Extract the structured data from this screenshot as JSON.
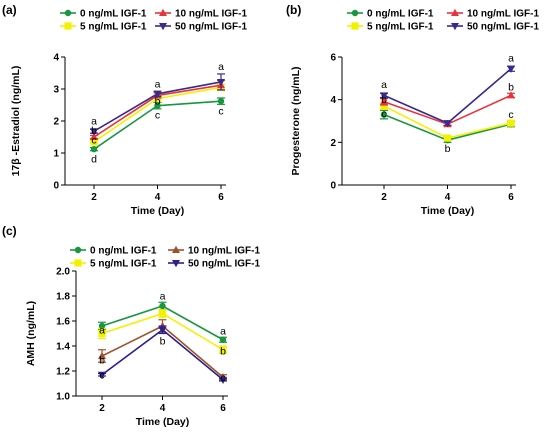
{
  "chart_data": [
    {
      "panel": "(a)",
      "type": "line",
      "ylabel": "17β -Estradiol (ng/mL)",
      "xlabel": "Time (Day)",
      "x": [
        2,
        4,
        6
      ],
      "xticks": [
        "2",
        "4",
        "6"
      ],
      "ylim": [
        0,
        4
      ],
      "yticks": [
        "0",
        "1",
        "2",
        "3",
        "4"
      ],
      "series": [
        {
          "name": "0 ng/mL IGF-1",
          "color": "#1a9641",
          "marker": "circle",
          "values": [
            1.12,
            2.48,
            2.62
          ],
          "errors": [
            0.05,
            0.1,
            0.1
          ]
        },
        {
          "name": "5 ng/mL IGF-1",
          "color": "#f2f200",
          "marker": "square",
          "values": [
            1.35,
            2.7,
            3.05
          ],
          "errors": [
            0.05,
            0.08,
            0.1
          ]
        },
        {
          "name": "10 ng/mL IGF-1",
          "color": "#e8323c",
          "marker": "triangle-up",
          "values": [
            1.5,
            2.8,
            3.12
          ],
          "errors": [
            0.05,
            0.08,
            0.15
          ]
        },
        {
          "name": "50 ng/mL IGF-1",
          "color": "#3a2a8c",
          "marker": "triangle-down",
          "values": [
            1.68,
            2.85,
            3.22
          ],
          "errors": [
            0.06,
            0.08,
            0.25
          ]
        }
      ],
      "annotations": [
        {
          "text": "a",
          "x": 2,
          "y": 2.0
        },
        {
          "text": "b",
          "x": 2,
          "y": 1.7
        },
        {
          "text": "c",
          "x": 2,
          "y": 1.4
        },
        {
          "text": "d",
          "x": 2,
          "y": 0.82
        },
        {
          "text": "a",
          "x": 4,
          "y": 3.15
        },
        {
          "text": "b",
          "x": 4,
          "y": 2.62
        },
        {
          "text": "c",
          "x": 4,
          "y": 2.18
        },
        {
          "text": "a",
          "x": 6,
          "y": 3.7
        },
        {
          "text": "c",
          "x": 6,
          "y": 2.32
        }
      ]
    },
    {
      "panel": "(b)",
      "type": "line",
      "ylabel": "Progesterone (ng/mL)",
      "xlabel": "Time (Day)",
      "x": [
        2,
        4,
        6
      ],
      "xticks": [
        "2",
        "4",
        "6"
      ],
      "ylim": [
        0,
        6
      ],
      "yticks": [
        "0",
        "2",
        "4",
        "6"
      ],
      "series": [
        {
          "name": "0 ng/mL IGF-1",
          "color": "#1a9641",
          "marker": "circle",
          "values": [
            3.3,
            2.1,
            2.85
          ],
          "errors": [
            0.2,
            0.1,
            0.12
          ]
        },
        {
          "name": "5 ng/mL IGF-1",
          "color": "#f2f200",
          "marker": "square",
          "values": [
            3.7,
            2.2,
            2.9
          ],
          "errors": [
            0.15,
            0.1,
            0.1
          ]
        },
        {
          "name": "10 ng/mL IGF-1",
          "color": "#e8323c",
          "marker": "triangle-up",
          "values": [
            3.9,
            2.85,
            4.2
          ],
          "errors": [
            0.15,
            0.1,
            0.1
          ]
        },
        {
          "name": "50 ng/mL IGF-1",
          "color": "#3a2a8c",
          "marker": "triangle-down",
          "values": [
            4.2,
            2.9,
            5.45
          ],
          "errors": [
            0.1,
            0.1,
            0.12
          ]
        }
      ],
      "annotations": [
        {
          "text": "a",
          "x": 2,
          "y": 4.7
        },
        {
          "text": "b",
          "x": 2,
          "y": 4.0
        },
        {
          "text": "c",
          "x": 2,
          "y": 3.35
        },
        {
          "text": "b",
          "x": 4,
          "y": 1.7
        },
        {
          "text": "a",
          "x": 6,
          "y": 5.95
        },
        {
          "text": "b",
          "x": 6,
          "y": 4.6
        },
        {
          "text": "c",
          "x": 6,
          "y": 3.3
        }
      ]
    },
    {
      "panel": "(c)",
      "type": "line",
      "ylabel": "AMH (ng/mL)",
      "xlabel": "Time (Day)",
      "x": [
        2,
        4,
        6
      ],
      "xticks": [
        "2",
        "4",
        "6"
      ],
      "ylim": [
        1.0,
        2.0
      ],
      "yticks": [
        "1.0",
        "1.2",
        "1.4",
        "1.6",
        "1.8",
        "2.0"
      ],
      "series": [
        {
          "name": "0 ng/mL IGF-1",
          "color": "#1a9641",
          "marker": "circle",
          "values": [
            1.56,
            1.72,
            1.45
          ],
          "errors": [
            0.03,
            0.03,
            0.02
          ]
        },
        {
          "name": "5 ng/mL IGF-1",
          "color": "#f2f200",
          "marker": "square",
          "values": [
            1.5,
            1.66,
            1.37
          ],
          "errors": [
            0.04,
            0.03,
            0.03
          ]
        },
        {
          "name": "10 ng/mL IGF-1",
          "color": "#a0522d",
          "marker": "triangle-up",
          "values": [
            1.32,
            1.56,
            1.15
          ],
          "errors": [
            0.05,
            0.05,
            0.02
          ]
        },
        {
          "name": "50 ng/mL IGF-1",
          "color": "#2a1f8c",
          "marker": "triangle-down",
          "values": [
            1.17,
            1.53,
            1.13
          ],
          "errors": [
            0.01,
            0.03,
            0.01
          ]
        }
      ],
      "annotations": [
        {
          "text": "a",
          "x": 2,
          "y": 1.53
        },
        {
          "text": "b",
          "x": 2,
          "y": 1.29
        },
        {
          "text": "c",
          "x": 2,
          "y": 1.17
        },
        {
          "text": "a",
          "x": 4,
          "y": 1.8
        },
        {
          "text": "b",
          "x": 4,
          "y": 1.44
        },
        {
          "text": "a",
          "x": 6,
          "y": 1.52
        },
        {
          "text": "b",
          "x": 6,
          "y": 1.36
        },
        {
          "text": "c",
          "x": 6,
          "y": 1.15
        }
      ]
    }
  ]
}
